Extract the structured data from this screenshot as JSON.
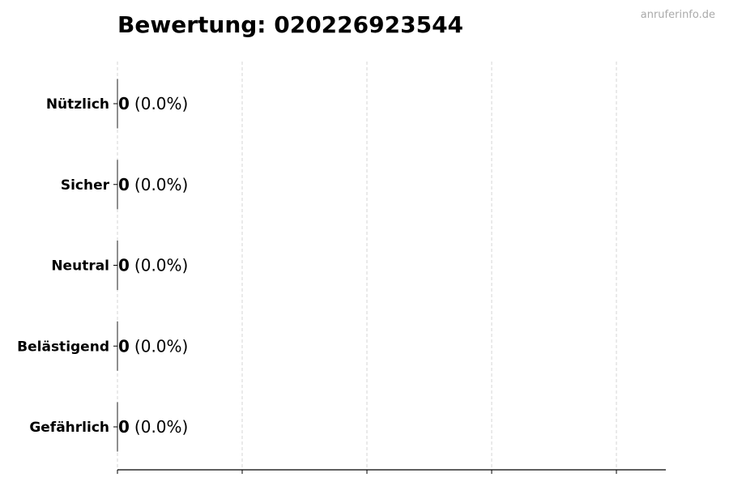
{
  "watermark": "anruferinfo.de",
  "chart_data": {
    "type": "bar",
    "orientation": "horizontal",
    "title": "Bewertung: 020226923544",
    "xlabel": "",
    "ylabel": "",
    "categories": [
      "Nützlich",
      "Sicher",
      "Neutral",
      "Belästigend",
      "Gefährlich"
    ],
    "values": [
      0,
      0,
      0,
      0,
      0
    ],
    "data_labels": [
      {
        "count": "0",
        "percent": "(0.0%)"
      },
      {
        "count": "0",
        "percent": "(0.0%)"
      },
      {
        "count": "0",
        "percent": "(0.0%)"
      },
      {
        "count": "0",
        "percent": "(0.0%)"
      },
      {
        "count": "0",
        "percent": "(0.0%)"
      }
    ],
    "x_ticks_count": 5,
    "x_tick_labels_shown": false,
    "grid": "x, dashed",
    "colors": {
      "bar_edge": "#222222",
      "grid": "#cccccc",
      "watermark": "#aaaaaa"
    }
  }
}
